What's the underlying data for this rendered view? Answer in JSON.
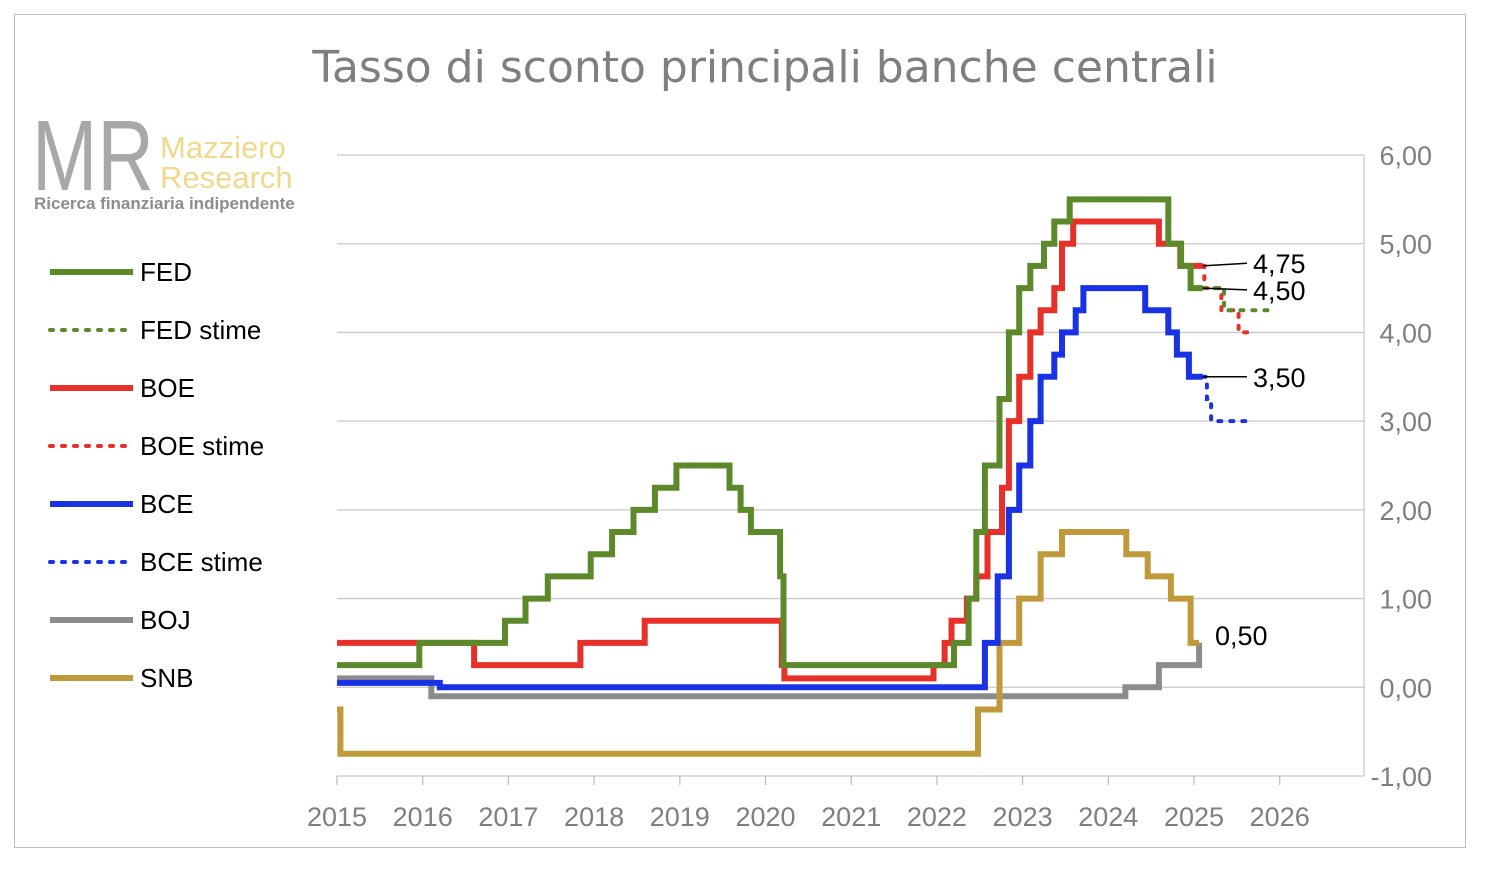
{
  "chart_data": {
    "type": "line",
    "title": "Tasso di sconto principali banche centrali",
    "logo": {
      "mark": "MR",
      "line1": "Mazziero",
      "line2": "Research",
      "tagline": "Ricerca finanziaria indipendente"
    },
    "x_ticks": [
      "2015",
      "2016",
      "2017",
      "2018",
      "2019",
      "2020",
      "2021",
      "2022",
      "2023",
      "2024",
      "2025",
      "2026"
    ],
    "y_ticks": [
      "-1,00",
      "0,00",
      "1,00",
      "2,00",
      "3,00",
      "4,00",
      "5,00",
      "6,00"
    ],
    "xlim": [
      2015,
      2026.4
    ],
    "ylim": [
      -1,
      6
    ],
    "y_axis_side": "right",
    "grid": "horizontal",
    "legend_position": "left",
    "series": [
      {
        "name": "FED",
        "style": "solid",
        "color": "#5c8a2a",
        "points": [
          [
            2015.0,
            0.25
          ],
          [
            2015.96,
            0.5
          ],
          [
            2016.96,
            0.75
          ],
          [
            2017.2,
            1.0
          ],
          [
            2017.46,
            1.25
          ],
          [
            2017.96,
            1.5
          ],
          [
            2018.21,
            1.75
          ],
          [
            2018.46,
            2.0
          ],
          [
            2018.71,
            2.25
          ],
          [
            2018.96,
            2.5
          ],
          [
            2019.58,
            2.25
          ],
          [
            2019.71,
            2.0
          ],
          [
            2019.83,
            1.75
          ],
          [
            2020.17,
            1.25
          ],
          [
            2020.21,
            0.25
          ],
          [
            2022.2,
            0.5
          ],
          [
            2022.37,
            1.0
          ],
          [
            2022.46,
            1.75
          ],
          [
            2022.56,
            2.5
          ],
          [
            2022.73,
            3.25
          ],
          [
            2022.84,
            4.0
          ],
          [
            2022.96,
            4.5
          ],
          [
            2023.09,
            4.75
          ],
          [
            2023.25,
            5.0
          ],
          [
            2023.37,
            5.25
          ],
          [
            2023.55,
            5.5
          ],
          [
            2024.7,
            5.0
          ],
          [
            2024.85,
            4.75
          ],
          [
            2024.96,
            4.5
          ],
          [
            2025.1,
            4.5
          ]
        ]
      },
      {
        "name": "FED stime",
        "style": "dotted",
        "color": "#5c8a2a",
        "points": [
          [
            2025.1,
            4.5
          ],
          [
            2025.3,
            4.5
          ],
          [
            2025.35,
            4.25
          ],
          [
            2025.95,
            4.25
          ]
        ]
      },
      {
        "name": "BOE",
        "style": "solid",
        "color": "#e8302a",
        "points": [
          [
            2015.0,
            0.5
          ],
          [
            2016.6,
            0.25
          ],
          [
            2017.84,
            0.5
          ],
          [
            2018.59,
            0.75
          ],
          [
            2020.19,
            0.25
          ],
          [
            2020.22,
            0.1
          ],
          [
            2021.96,
            0.25
          ],
          [
            2022.09,
            0.5
          ],
          [
            2022.17,
            0.75
          ],
          [
            2022.35,
            1.0
          ],
          [
            2022.46,
            1.25
          ],
          [
            2022.59,
            1.75
          ],
          [
            2022.76,
            2.25
          ],
          [
            2022.84,
            3.0
          ],
          [
            2022.96,
            3.5
          ],
          [
            2023.09,
            4.0
          ],
          [
            2023.21,
            4.25
          ],
          [
            2023.37,
            4.5
          ],
          [
            2023.46,
            5.0
          ],
          [
            2023.59,
            5.25
          ],
          [
            2024.59,
            5.0
          ],
          [
            2024.84,
            4.75
          ],
          [
            2025.1,
            4.75
          ]
        ]
      },
      {
        "name": "BOE stime",
        "style": "dotted",
        "color": "#e8302a",
        "points": [
          [
            2025.1,
            4.75
          ],
          [
            2025.12,
            4.5
          ],
          [
            2025.3,
            4.5
          ],
          [
            2025.32,
            4.25
          ],
          [
            2025.5,
            4.25
          ],
          [
            2025.52,
            4.0
          ],
          [
            2025.62,
            4.0
          ]
        ]
      },
      {
        "name": "BCE",
        "style": "solid",
        "color": "#1a32e6",
        "points": [
          [
            2015.0,
            0.05
          ],
          [
            2015.71,
            0.05
          ],
          [
            2016.2,
            0.0
          ],
          [
            2022.56,
            0.5
          ],
          [
            2022.71,
            1.25
          ],
          [
            2022.84,
            2.0
          ],
          [
            2022.96,
            2.5
          ],
          [
            2023.09,
            3.0
          ],
          [
            2023.21,
            3.5
          ],
          [
            2023.37,
            3.75
          ],
          [
            2023.46,
            4.0
          ],
          [
            2023.62,
            4.25
          ],
          [
            2023.71,
            4.5
          ],
          [
            2024.43,
            4.25
          ],
          [
            2024.7,
            4.0
          ],
          [
            2024.8,
            3.75
          ],
          [
            2024.94,
            3.5
          ],
          [
            2025.1,
            3.5
          ]
        ]
      },
      {
        "name": "BCE stime",
        "style": "dotted",
        "color": "#1a32e6",
        "points": [
          [
            2025.1,
            3.5
          ],
          [
            2025.15,
            3.25
          ],
          [
            2025.2,
            3.0
          ],
          [
            2025.3,
            3.0
          ],
          [
            2025.62,
            3.0
          ]
        ]
      },
      {
        "name": "BOJ",
        "style": "solid",
        "color": "#8c8c8c",
        "points": [
          [
            2015.0,
            0.1
          ],
          [
            2016.1,
            -0.1
          ],
          [
            2024.2,
            0.0
          ],
          [
            2024.59,
            0.25
          ],
          [
            2025.06,
            0.5
          ]
        ]
      },
      {
        "name": "SNB",
        "style": "solid",
        "color": "#c09a3a",
        "points": [
          [
            2015.0,
            -0.25
          ],
          [
            2015.04,
            -0.75
          ],
          [
            2022.48,
            -0.25
          ],
          [
            2022.73,
            0.5
          ],
          [
            2022.96,
            1.0
          ],
          [
            2023.21,
            1.5
          ],
          [
            2023.46,
            1.75
          ],
          [
            2024.21,
            1.5
          ],
          [
            2024.46,
            1.25
          ],
          [
            2024.73,
            1.0
          ],
          [
            2024.96,
            0.5
          ],
          [
            2025.06,
            0.5
          ]
        ]
      }
    ],
    "annotations": [
      {
        "text": "4,75",
        "x": 2025.1,
        "y": 4.75
      },
      {
        "text": "4,50",
        "x": 2025.1,
        "y": 4.5
      },
      {
        "text": "3,50",
        "x": 2025.1,
        "y": 3.5
      },
      {
        "text": "0,50",
        "x": 2025.06,
        "y": 0.5
      }
    ]
  }
}
